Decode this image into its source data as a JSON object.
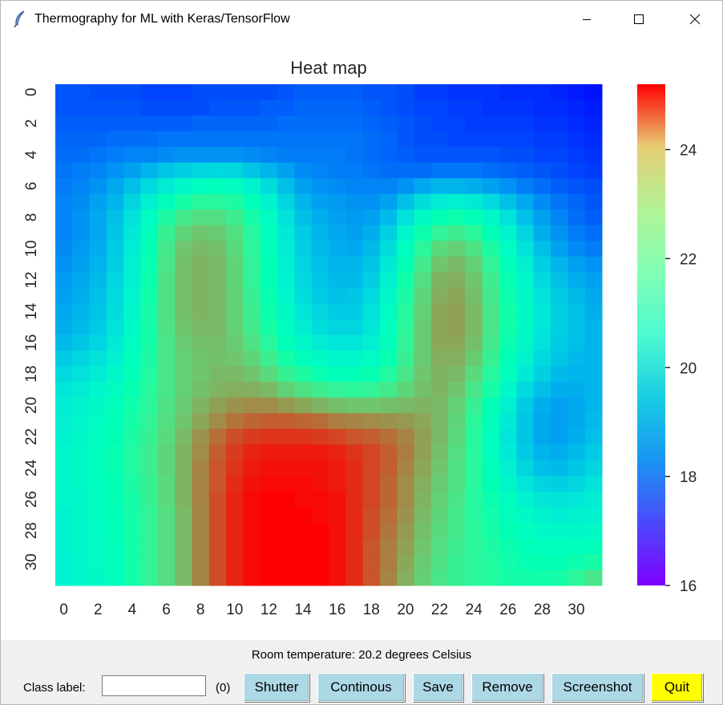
{
  "window": {
    "title": "Thermography for ML with Keras/TensorFlow",
    "app_icon": "feather-icon",
    "controls": [
      "minimize-icon",
      "maximize-icon",
      "close-icon"
    ]
  },
  "chart_data": {
    "type": "heatmap",
    "title": "Heat map",
    "xlabel": "",
    "ylabel": "",
    "rows": 32,
    "cols": 32,
    "x_tick_labels": [
      "0",
      "2",
      "4",
      "6",
      "8",
      "10",
      "12",
      "14",
      "16",
      "18",
      "20",
      "22",
      "24",
      "26",
      "28",
      "30"
    ],
    "y_tick_labels": [
      "0",
      "2",
      "4",
      "6",
      "8",
      "10",
      "12",
      "14",
      "16",
      "18",
      "20",
      "22",
      "24",
      "26",
      "28",
      "30"
    ],
    "colormap": "rainbow",
    "vmin": 16.0,
    "vmax": 25.2,
    "colorbar_ticks": [
      16,
      18,
      20,
      22,
      24
    ],
    "values": [
      [
        17.0,
        17.0,
        16.9,
        16.9,
        16.9,
        16.8,
        16.8,
        16.8,
        16.9,
        16.9,
        16.9,
        16.9,
        16.9,
        17.0,
        17.1,
        17.1,
        17.1,
        17.1,
        17.0,
        17.0,
        16.9,
        16.7,
        16.7,
        16.6,
        16.6,
        16.6,
        16.5,
        16.5,
        16.5,
        16.4,
        16.3,
        16.2
      ],
      [
        17.0,
        17.0,
        17.0,
        17.0,
        17.0,
        16.9,
        16.9,
        16.9,
        16.9,
        17.0,
        17.0,
        17.0,
        17.1,
        17.1,
        17.2,
        17.2,
        17.2,
        17.2,
        17.1,
        17.0,
        16.9,
        16.8,
        16.8,
        16.7,
        16.7,
        16.6,
        16.6,
        16.6,
        16.5,
        16.5,
        16.4,
        16.3
      ],
      [
        17.1,
        17.1,
        17.1,
        17.1,
        17.1,
        17.1,
        17.1,
        17.1,
        17.2,
        17.2,
        17.2,
        17.2,
        17.2,
        17.3,
        17.3,
        17.3,
        17.3,
        17.3,
        17.2,
        17.1,
        17.0,
        16.9,
        16.8,
        16.8,
        16.7,
        16.7,
        16.7,
        16.7,
        16.6,
        16.6,
        16.5,
        16.4
      ],
      [
        17.2,
        17.2,
        17.2,
        17.3,
        17.3,
        17.3,
        17.4,
        17.4,
        17.4,
        17.4,
        17.4,
        17.4,
        17.4,
        17.4,
        17.4,
        17.4,
        17.4,
        17.4,
        17.3,
        17.2,
        17.0,
        16.9,
        16.9,
        16.8,
        16.8,
        16.8,
        16.8,
        16.8,
        16.7,
        16.7,
        16.6,
        16.5
      ],
      [
        17.3,
        17.3,
        17.4,
        17.5,
        17.6,
        17.6,
        17.7,
        17.8,
        17.8,
        17.8,
        17.8,
        17.7,
        17.6,
        17.5,
        17.5,
        17.5,
        17.5,
        17.4,
        17.3,
        17.2,
        17.1,
        17.0,
        17.0,
        17.0,
        17.0,
        17.0,
        16.9,
        16.9,
        16.8,
        16.8,
        16.7,
        16.6
      ],
      [
        17.4,
        17.5,
        17.6,
        17.8,
        18.0,
        18.3,
        18.6,
        18.8,
        18.9,
        19.0,
        18.9,
        18.6,
        18.3,
        18.0,
        17.7,
        17.6,
        17.5,
        17.5,
        17.4,
        17.3,
        17.3,
        17.3,
        17.4,
        17.4,
        17.4,
        17.3,
        17.2,
        17.1,
        17.0,
        16.9,
        16.8,
        16.7
      ],
      [
        17.5,
        17.6,
        17.8,
        18.1,
        18.5,
        19.0,
        19.5,
        19.9,
        20.2,
        20.3,
        20.1,
        19.7,
        19.1,
        18.5,
        18.0,
        17.8,
        17.7,
        17.6,
        17.6,
        17.6,
        17.8,
        18.1,
        18.3,
        18.3,
        18.2,
        18.0,
        17.8,
        17.5,
        17.3,
        17.1,
        17.0,
        16.9
      ],
      [
        17.6,
        17.7,
        18.0,
        18.3,
        18.9,
        19.6,
        20.4,
        21.0,
        21.3,
        21.3,
        21.1,
        20.5,
        19.7,
        18.9,
        18.3,
        18.0,
        17.9,
        17.8,
        17.8,
        18.0,
        18.5,
        19.1,
        19.5,
        19.6,
        19.4,
        19.0,
        18.5,
        18.1,
        17.7,
        17.4,
        17.2,
        17.0
      ],
      [
        17.6,
        17.8,
        18.1,
        18.5,
        19.2,
        20.1,
        21.1,
        21.8,
        22.1,
        22.1,
        21.7,
        21.0,
        20.1,
        19.2,
        18.5,
        18.2,
        18.0,
        17.9,
        18.0,
        18.4,
        19.2,
        20.0,
        20.6,
        20.8,
        20.5,
        19.9,
        19.2,
        18.5,
        18.0,
        17.6,
        17.3,
        17.1
      ],
      [
        17.6,
        17.8,
        18.1,
        18.6,
        19.4,
        20.4,
        21.6,
        22.3,
        22.6,
        22.5,
        22.1,
        21.3,
        20.3,
        19.4,
        18.7,
        18.3,
        18.1,
        18.0,
        18.2,
        18.8,
        19.8,
        20.8,
        21.5,
        21.7,
        21.4,
        20.6,
        19.7,
        18.9,
        18.2,
        17.8,
        17.5,
        17.3
      ],
      [
        17.7,
        17.9,
        18.2,
        18.7,
        19.5,
        20.6,
        21.8,
        22.6,
        22.8,
        22.7,
        22.2,
        21.4,
        20.4,
        19.5,
        18.8,
        18.4,
        18.2,
        18.1,
        18.4,
        19.1,
        20.2,
        21.4,
        22.2,
        22.4,
        22.0,
        21.1,
        20.1,
        19.2,
        18.5,
        18.0,
        17.7,
        17.5
      ],
      [
        17.8,
        18.0,
        18.3,
        18.8,
        19.6,
        20.7,
        21.9,
        22.7,
        22.9,
        22.8,
        22.3,
        21.5,
        20.5,
        19.6,
        18.9,
        18.5,
        18.3,
        18.3,
        18.6,
        19.4,
        20.6,
        21.8,
        22.6,
        22.8,
        22.4,
        21.5,
        20.5,
        19.6,
        18.8,
        18.3,
        18.0,
        17.8
      ],
      [
        17.9,
        18.1,
        18.4,
        18.9,
        19.7,
        20.8,
        22.0,
        22.7,
        22.9,
        22.8,
        22.3,
        21.5,
        20.6,
        19.7,
        19.0,
        18.6,
        18.4,
        18.4,
        18.8,
        19.7,
        20.9,
        22.1,
        22.9,
        23.0,
        22.6,
        21.7,
        20.7,
        19.8,
        19.0,
        18.5,
        18.2,
        18.0
      ],
      [
        18.0,
        18.2,
        18.5,
        19.0,
        19.8,
        20.9,
        22.0,
        22.7,
        22.9,
        22.8,
        22.4,
        21.6,
        20.7,
        19.8,
        19.1,
        18.7,
        18.5,
        18.6,
        19.0,
        19.9,
        21.1,
        22.3,
        23.0,
        23.1,
        22.7,
        21.8,
        20.8,
        19.9,
        19.2,
        18.7,
        18.4,
        18.1
      ],
      [
        18.1,
        18.3,
        18.6,
        19.1,
        19.9,
        21.0,
        22.0,
        22.7,
        22.9,
        22.8,
        22.4,
        21.7,
        20.8,
        20.0,
        19.3,
        18.9,
        18.7,
        18.7,
        19.2,
        20.1,
        21.3,
        22.4,
        23.1,
        23.2,
        22.8,
        21.9,
        20.9,
        20.0,
        19.3,
        18.8,
        18.5,
        18.2
      ],
      [
        18.2,
        18.4,
        18.7,
        19.2,
        20.0,
        21.0,
        22.0,
        22.6,
        22.8,
        22.8,
        22.4,
        21.8,
        21.0,
        20.2,
        19.5,
        19.1,
        18.9,
        18.9,
        19.3,
        20.2,
        21.4,
        22.5,
        23.1,
        23.2,
        22.8,
        21.9,
        20.9,
        20.0,
        19.3,
        18.8,
        18.5,
        18.3
      ],
      [
        18.4,
        18.6,
        18.9,
        19.4,
        20.1,
        21.0,
        21.9,
        22.5,
        22.7,
        22.7,
        22.5,
        22.0,
        21.3,
        20.5,
        19.9,
        19.5,
        19.3,
        19.3,
        19.6,
        20.4,
        21.5,
        22.5,
        23.1,
        23.1,
        22.7,
        21.8,
        20.8,
        19.9,
        19.2,
        18.7,
        18.5,
        18.3
      ],
      [
        18.7,
        18.9,
        19.2,
        19.6,
        20.3,
        21.1,
        21.9,
        22.4,
        22.6,
        22.7,
        22.6,
        22.3,
        21.7,
        21.0,
        20.4,
        20.0,
        19.8,
        19.8,
        20.1,
        20.7,
        21.6,
        22.5,
        23.0,
        23.0,
        22.5,
        21.6,
        20.6,
        19.7,
        19.0,
        18.6,
        18.4,
        18.3
      ],
      [
        19.0,
        19.2,
        19.5,
        19.9,
        20.5,
        21.2,
        21.9,
        22.4,
        22.6,
        22.8,
        22.8,
        22.6,
        22.2,
        21.6,
        21.1,
        20.7,
        20.5,
        20.5,
        20.7,
        21.2,
        21.9,
        22.6,
        22.9,
        22.8,
        22.2,
        21.3,
        20.3,
        19.4,
        18.8,
        18.4,
        18.3,
        18.3
      ],
      [
        19.3,
        19.5,
        19.8,
        20.2,
        20.7,
        21.3,
        21.9,
        22.4,
        22.7,
        22.9,
        23.0,
        23.0,
        22.8,
        22.4,
        22.0,
        21.7,
        21.5,
        21.4,
        21.5,
        21.8,
        22.3,
        22.7,
        22.9,
        22.6,
        21.9,
        21.0,
        19.9,
        19.0,
        18.5,
        18.2,
        18.2,
        18.3
      ],
      [
        19.5,
        19.7,
        20.0,
        20.4,
        20.9,
        21.4,
        22.0,
        22.5,
        22.9,
        23.2,
        23.4,
        23.5,
        23.5,
        23.3,
        23.1,
        22.9,
        22.7,
        22.6,
        22.6,
        22.7,
        22.8,
        22.9,
        22.8,
        22.4,
        21.6,
        20.6,
        19.6,
        18.7,
        18.2,
        18.0,
        18.1,
        18.3
      ],
      [
        19.6,
        19.8,
        20.1,
        20.5,
        21.0,
        21.5,
        22.1,
        22.6,
        23.1,
        23.5,
        23.8,
        24.0,
        24.1,
        24.1,
        24.0,
        23.9,
        23.7,
        23.6,
        23.5,
        23.4,
        23.3,
        23.1,
        22.8,
        22.3,
        21.4,
        20.4,
        19.4,
        18.6,
        18.1,
        18.0,
        18.1,
        18.4
      ],
      [
        19.7,
        19.9,
        20.2,
        20.6,
        21.1,
        21.6,
        22.2,
        22.8,
        23.4,
        23.9,
        24.3,
        24.5,
        24.6,
        24.6,
        24.6,
        24.5,
        24.4,
        24.2,
        24.1,
        23.9,
        23.6,
        23.2,
        22.8,
        22.2,
        21.3,
        20.3,
        19.3,
        18.6,
        18.1,
        18.0,
        18.2,
        18.5
      ],
      [
        19.8,
        20.0,
        20.3,
        20.7,
        21.2,
        21.7,
        22.3,
        22.9,
        23.5,
        24.1,
        24.5,
        24.8,
        24.9,
        24.9,
        24.9,
        24.9,
        24.8,
        24.6,
        24.4,
        24.1,
        23.7,
        23.2,
        22.7,
        22.1,
        21.3,
        20.3,
        19.4,
        18.7,
        18.3,
        18.2,
        18.4,
        18.7
      ],
      [
        19.8,
        20.0,
        20.3,
        20.7,
        21.2,
        21.7,
        22.3,
        22.9,
        23.6,
        24.2,
        24.6,
        24.9,
        25.0,
        25.0,
        25.0,
        25.0,
        24.9,
        24.7,
        24.4,
        24.1,
        23.6,
        23.1,
        22.6,
        22.0,
        21.3,
        20.4,
        19.6,
        18.9,
        18.5,
        18.4,
        18.6,
        18.9
      ],
      [
        19.8,
        20.0,
        20.3,
        20.6,
        21.1,
        21.6,
        22.2,
        22.9,
        23.6,
        24.2,
        24.7,
        25.0,
        25.1,
        25.1,
        25.1,
        25.0,
        24.9,
        24.7,
        24.4,
        24.0,
        23.5,
        23.0,
        22.5,
        22.0,
        21.3,
        20.6,
        19.9,
        19.3,
        18.9,
        18.8,
        18.9,
        19.2
      ],
      [
        19.8,
        19.9,
        20.2,
        20.6,
        21.0,
        21.6,
        22.2,
        22.9,
        23.6,
        24.3,
        24.8,
        25.1,
        25.2,
        25.2,
        25.1,
        25.1,
        25.0,
        24.7,
        24.4,
        24.0,
        23.5,
        22.9,
        22.4,
        21.9,
        21.3,
        20.8,
        20.2,
        19.7,
        19.3,
        19.2,
        19.3,
        19.5
      ],
      [
        19.7,
        19.9,
        20.2,
        20.5,
        21.0,
        21.5,
        22.1,
        22.8,
        23.6,
        24.3,
        24.8,
        25.1,
        25.2,
        25.2,
        25.2,
        25.1,
        25.0,
        24.7,
        24.3,
        23.9,
        23.4,
        22.8,
        22.3,
        21.8,
        21.3,
        20.9,
        20.4,
        20.0,
        19.7,
        19.5,
        19.6,
        19.7
      ],
      [
        19.7,
        19.9,
        20.1,
        20.5,
        20.9,
        21.5,
        22.1,
        22.8,
        23.6,
        24.3,
        24.8,
        25.1,
        25.2,
        25.2,
        25.2,
        25.2,
        25.0,
        24.7,
        24.3,
        23.8,
        23.3,
        22.7,
        22.2,
        21.8,
        21.4,
        21.0,
        20.6,
        20.3,
        20.0,
        19.9,
        19.9,
        20.0
      ],
      [
        19.7,
        19.9,
        20.1,
        20.4,
        20.9,
        21.5,
        22.1,
        22.8,
        23.6,
        24.3,
        24.8,
        25.1,
        25.2,
        25.2,
        25.2,
        25.2,
        25.0,
        24.7,
        24.2,
        23.7,
        23.2,
        22.6,
        22.1,
        21.7,
        21.4,
        21.1,
        20.8,
        20.5,
        20.3,
        20.2,
        20.3,
        20.4
      ],
      [
        19.7,
        19.8,
        20.1,
        20.4,
        20.9,
        21.5,
        22.1,
        22.8,
        23.6,
        24.3,
        24.8,
        25.1,
        25.2,
        25.2,
        25.2,
        25.2,
        25.0,
        24.7,
        24.2,
        23.7,
        23.1,
        22.5,
        22.0,
        21.6,
        21.4,
        21.2,
        20.9,
        20.7,
        20.6,
        20.6,
        20.8,
        21.0
      ],
      [
        19.7,
        19.8,
        20.0,
        20.4,
        20.9,
        21.5,
        22.1,
        22.8,
        23.6,
        24.3,
        24.8,
        25.1,
        25.2,
        25.2,
        25.2,
        25.2,
        25.0,
        24.7,
        24.2,
        23.6,
        23.0,
        22.4,
        21.9,
        21.6,
        21.4,
        21.2,
        21.0,
        20.9,
        20.9,
        21.0,
        21.4,
        21.9
      ]
    ]
  },
  "status": {
    "text": "Room temperature: 20.2 degrees Celsius"
  },
  "controls": {
    "class_label": "Class label:",
    "class_input_value": "",
    "count": "(0)",
    "buttons": {
      "shutter": "Shutter",
      "continous": "Continous",
      "save": "Save",
      "remove": "Remove",
      "screenshot": "Screenshot",
      "quit": "Quit"
    },
    "colors": {
      "button_bg": "#add8e6",
      "quit_bg": "#ffff00",
      "panel_bg": "#f0f0f0"
    }
  }
}
